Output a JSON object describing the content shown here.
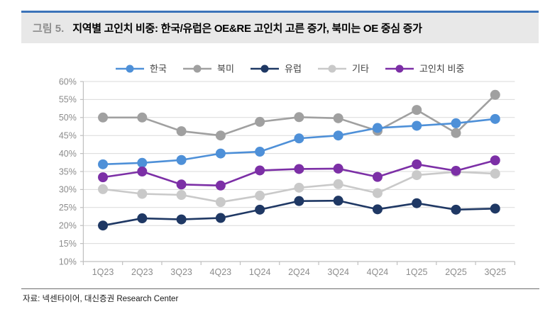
{
  "figure": {
    "label": "그림 5.",
    "title": "지역별 고인치 비중: 한국/유럽은 OE&RE 고인치 고른 증가, 북미는 OE 중심 증가"
  },
  "source": {
    "text": "자료: 넥센타이어, 대신증권 Research Center"
  },
  "colors": {
    "header_accent": "#3b73b9",
    "header_background": "#e8e8e8",
    "gridline": "#d9d9d9",
    "axis": "#c0c0c0",
    "axis_label": "#8c8c8c",
    "legend_label": "#404040"
  },
  "chart_data": {
    "type": "line",
    "unit": "%",
    "categories": [
      "1Q23",
      "2Q23",
      "3Q23",
      "4Q23",
      "1Q24",
      "2Q24",
      "3Q24",
      "4Q24",
      "1Q25",
      "2Q25",
      "3Q25"
    ],
    "series": [
      {
        "key": "korea",
        "name": "한국",
        "color": "#4e90d8",
        "values": [
          37.0,
          37.4,
          38.2,
          40.0,
          40.5,
          44.2,
          45.0,
          47.1,
          47.7,
          48.4,
          49.6
        ]
      },
      {
        "key": "north-america",
        "name": "북미",
        "color": "#a0a0a0",
        "values": [
          50.0,
          50.0,
          46.2,
          45.0,
          48.8,
          50.1,
          49.8,
          46.3,
          52.1,
          45.7,
          56.3
        ]
      },
      {
        "key": "europe",
        "name": "유럽",
        "color": "#1f3864",
        "values": [
          20.0,
          22.0,
          21.7,
          22.1,
          24.4,
          26.8,
          26.9,
          24.5,
          26.2,
          24.4,
          24.7
        ]
      },
      {
        "key": "others",
        "name": "기타",
        "color": "#c9c9c9",
        "values": [
          30.1,
          28.8,
          28.5,
          26.5,
          28.3,
          30.5,
          31.5,
          29.0,
          34.0,
          34.9,
          34.4
        ]
      },
      {
        "key": "large-inch-ratio",
        "name": "고인치 비중",
        "color": "#7c2fa6",
        "values": [
          33.4,
          35.0,
          31.4,
          31.1,
          35.3,
          35.7,
          35.8,
          33.5,
          37.0,
          35.2,
          38.1
        ]
      }
    ],
    "ylim": [
      10,
      60
    ],
    "ytick_step": 5,
    "ytick_labels": [
      "10%",
      "15%",
      "20%",
      "25%",
      "30%",
      "35%",
      "40%",
      "45%",
      "50%",
      "55%",
      "60%"
    ],
    "legend_position": "top",
    "grid": "horizontal"
  }
}
